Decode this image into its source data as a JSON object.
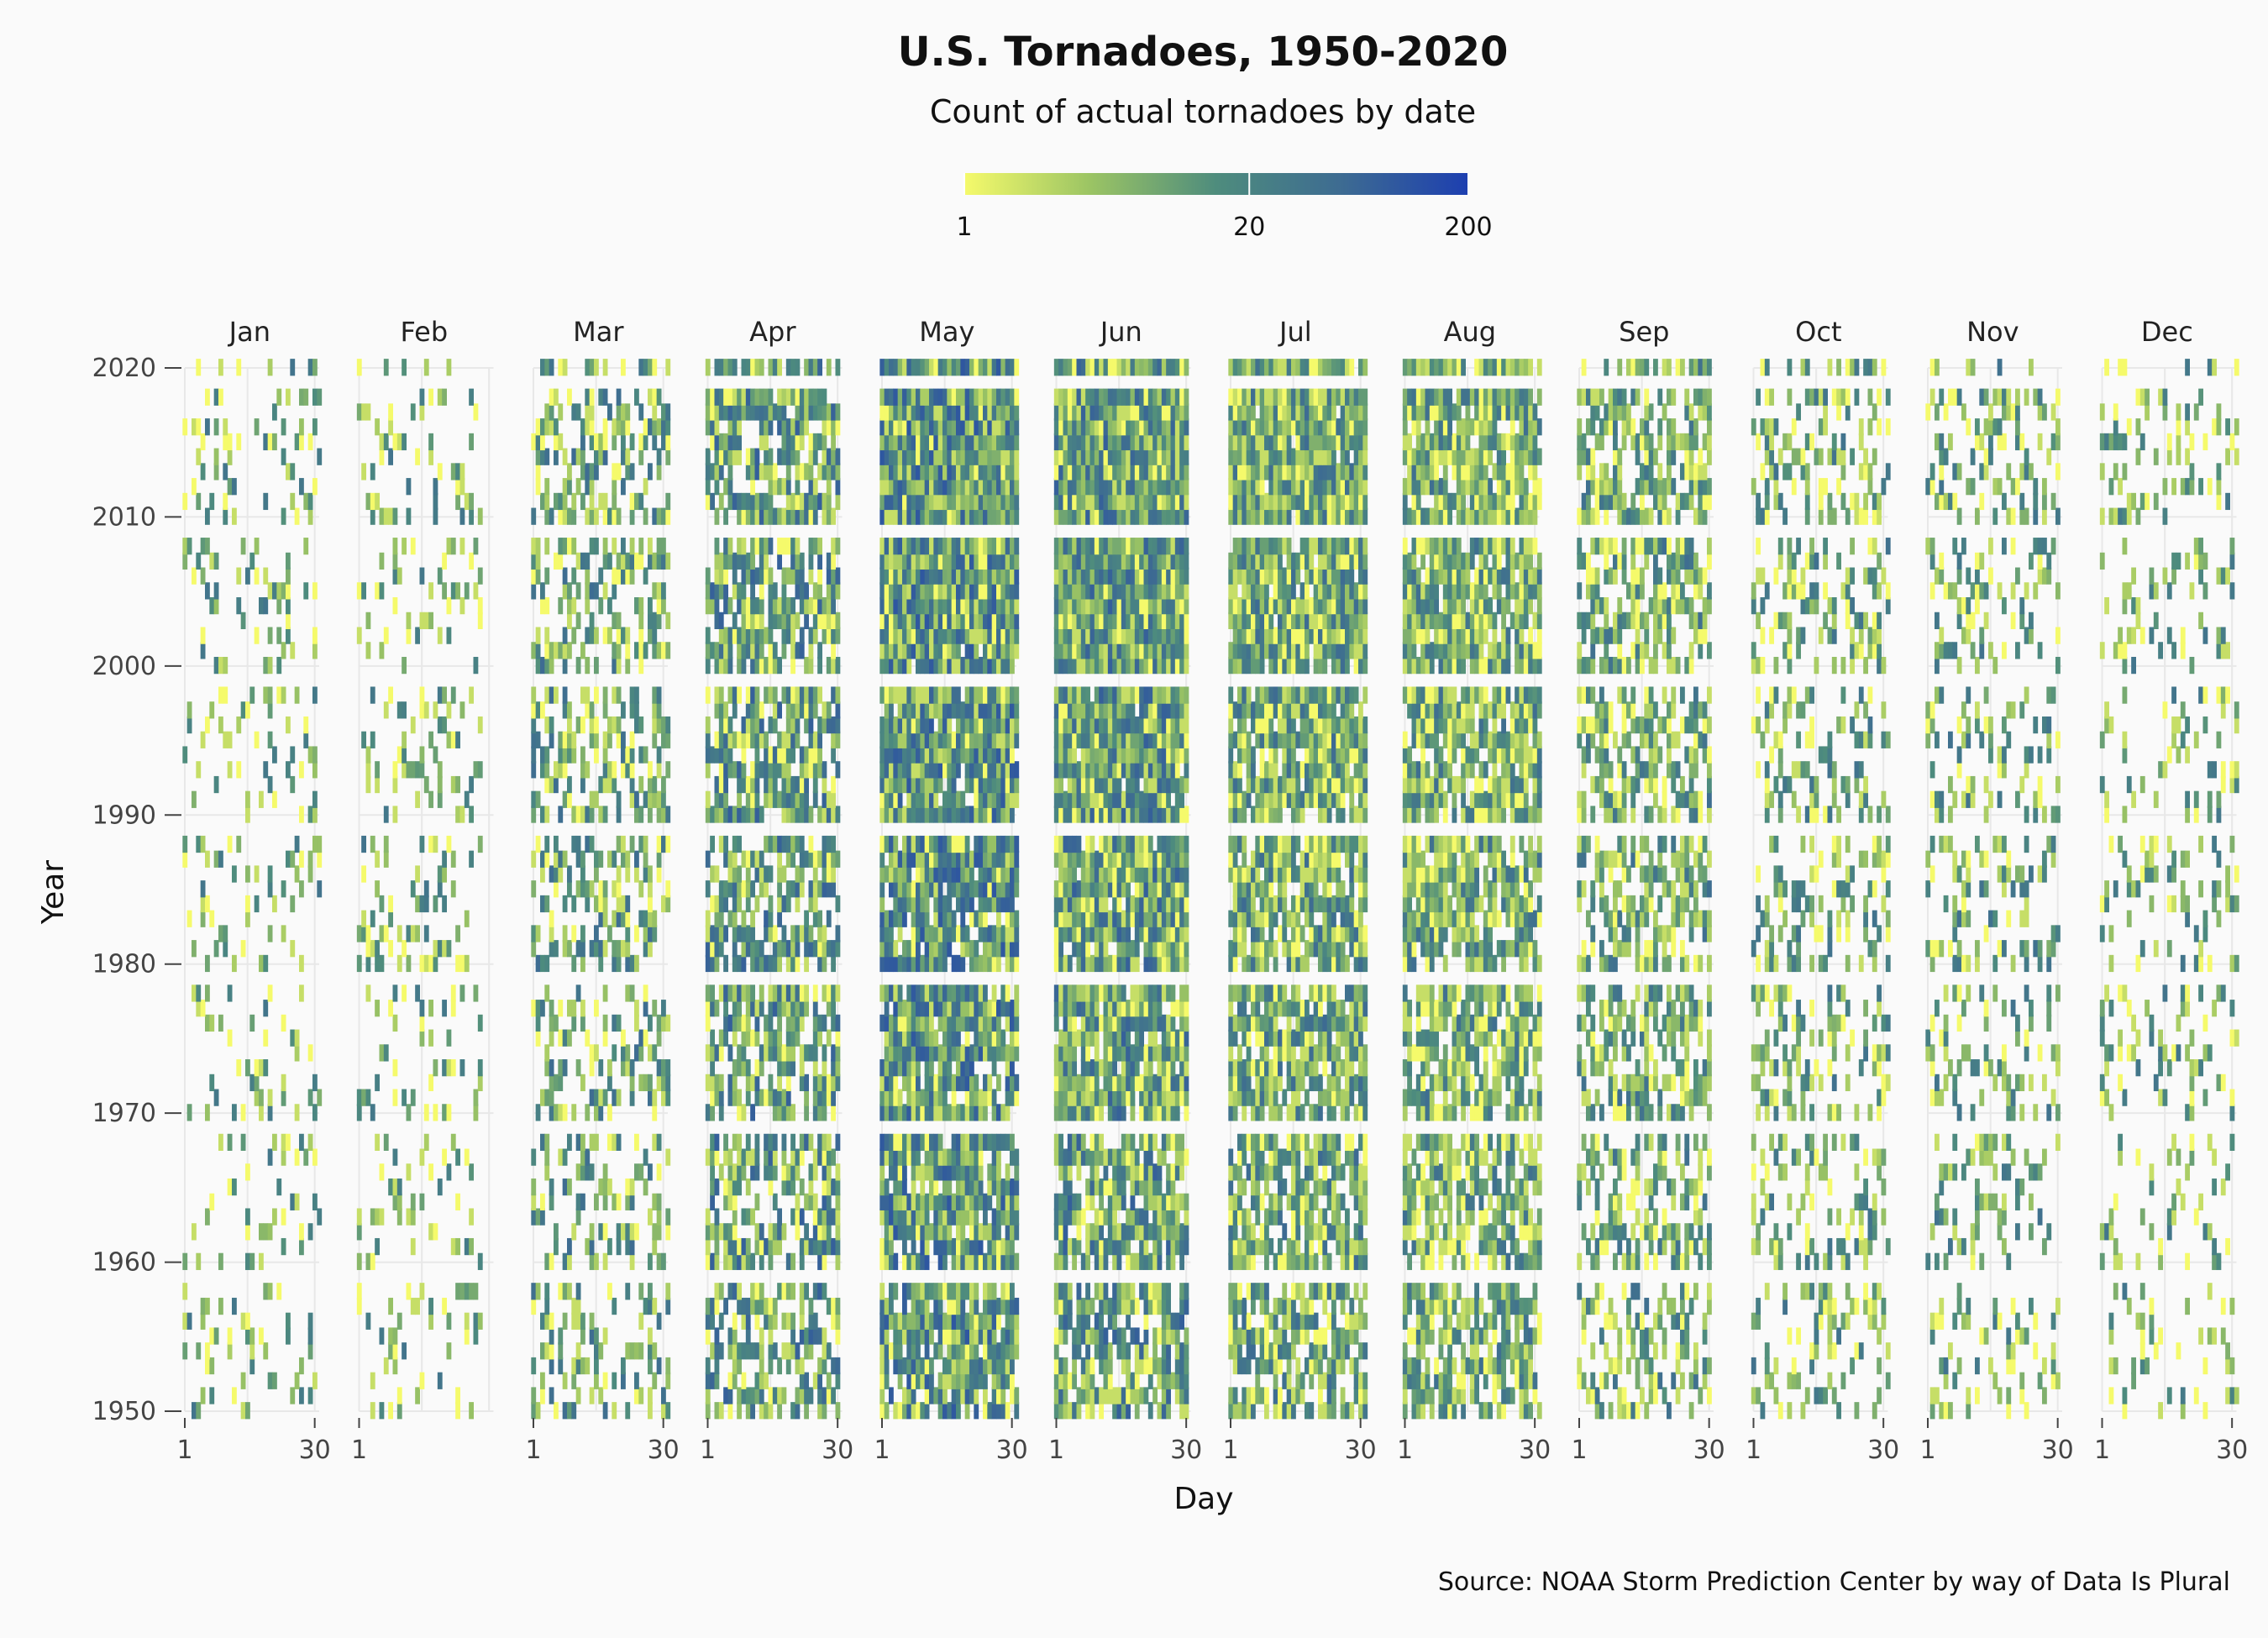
{
  "chart_data": {
    "type": "heatmap",
    "title": "U.S. Tornadoes, 1950-2020",
    "subtitle": "Count of actual tornadoes by date",
    "xlabel": "Day",
    "ylabel": "Year",
    "facets": [
      "Jan",
      "Feb",
      "Mar",
      "Apr",
      "May",
      "Jun",
      "Jul",
      "Aug",
      "Sep",
      "Oct",
      "Nov",
      "Dec"
    ],
    "facet_layout": "one panel per month in a single row, years on a shared y-axis",
    "x_range": [
      1,
      31
    ],
    "x_ticks": [
      1,
      30
    ],
    "y_range": [
      1950,
      2020
    ],
    "y_ticks": [
      1950,
      1960,
      1970,
      1980,
      1990,
      2000,
      2010,
      2020
    ],
    "color_scale": {
      "type": "log",
      "domain": [
        1,
        200
      ],
      "ticks": [
        1,
        20,
        200
      ],
      "colors": [
        "#f5fa6b",
        "#9bc464",
        "#4e8c7d",
        "#3d6b92",
        "#1d3fb0"
      ]
    },
    "month_activity_level": {
      "Jan": 0.18,
      "Feb": 0.2,
      "Mar": 0.45,
      "Apr": 0.7,
      "May": 0.92,
      "Jun": 0.93,
      "Jul": 0.85,
      "Aug": 0.78,
      "Sep": 0.55,
      "Oct": 0.35,
      "Nov": 0.3,
      "Dec": 0.22
    },
    "month_intensity_level": {
      "Jan": 0.3,
      "Feb": 0.3,
      "Mar": 0.45,
      "Apr": 0.6,
      "May": 0.7,
      "Jun": 0.6,
      "Jul": 0.45,
      "Aug": 0.4,
      "Sep": 0.4,
      "Oct": 0.35,
      "Nov": 0.35,
      "Dec": 0.3
    },
    "grid": true,
    "legend_placement": "top-center",
    "source": "Source: NOAA Storm Prediction Center by way of Data Is Plural"
  }
}
